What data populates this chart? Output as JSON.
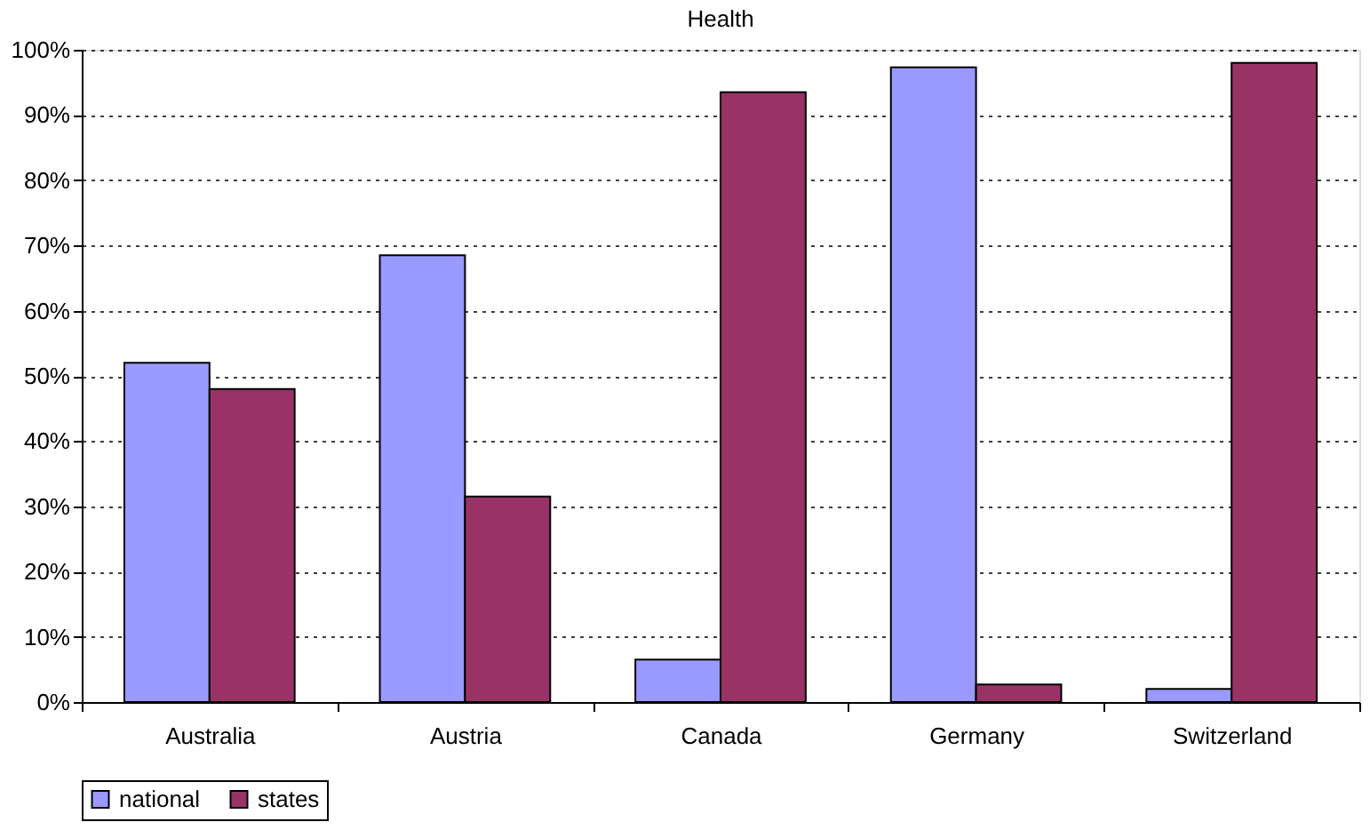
{
  "chart_data": {
    "type": "bar",
    "title": "Health",
    "categories": [
      "Australia",
      "Austria",
      "Canada",
      "Germany",
      "Switzerland"
    ],
    "series": [
      {
        "name": "national",
        "color": "#9999ff",
        "values": [
          52,
          68.5,
          6.5,
          97.3,
          2
        ]
      },
      {
        "name": "states",
        "color": "#993366",
        "values": [
          48,
          31.5,
          93.5,
          2.7,
          98
        ]
      }
    ],
    "ylim": [
      0,
      100
    ],
    "yticks": [
      {
        "value": 0,
        "label": "0%"
      },
      {
        "value": 10,
        "label": "10%"
      },
      {
        "value": 20,
        "label": "20%"
      },
      {
        "value": 30,
        "label": "30%"
      },
      {
        "value": 40,
        "label": "40%"
      },
      {
        "value": 50,
        "label": "50%"
      },
      {
        "value": 60,
        "label": "60%"
      },
      {
        "value": 70,
        "label": "70%"
      },
      {
        "value": 80,
        "label": "80%"
      },
      {
        "value": 90,
        "label": "90%"
      },
      {
        "value": 100,
        "label": "100%"
      }
    ],
    "grid": "y",
    "legend": "bottom"
  }
}
